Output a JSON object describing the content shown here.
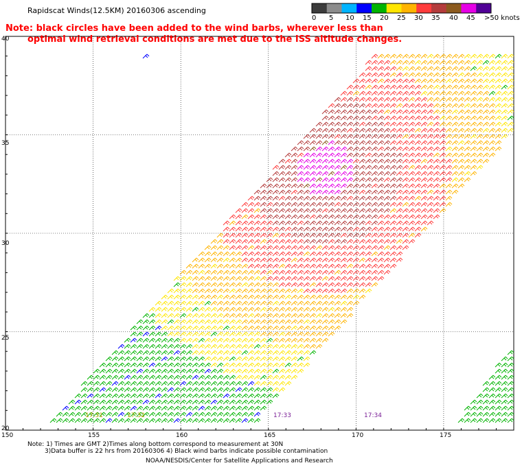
{
  "header": {
    "title": "Rapidscat Winds(12.5KM) 20160306 ascending",
    "note_line1": "Note: black circles have been added to the wind barbs, wherever less than",
    "note_line2": "optimal wind retrieval conditions are met due to the ISS altitude changes."
  },
  "color_scale": {
    "labels": [
      "0",
      "5",
      "10",
      "15",
      "20",
      "25",
      "30",
      "35",
      "40",
      "45",
      ">50 knots"
    ],
    "colors": [
      "#3c3c3c",
      "#8c8c8c",
      "#00b4ff",
      "#0000ff",
      "#00b400",
      "#ffe600",
      "#ffb400",
      "#ff3c3c",
      "#b43c3c",
      "#8c5a1e",
      "#e600e6",
      "#500096"
    ]
  },
  "map": {
    "lon_min": 150,
    "lon_max": 179,
    "lat_min": 20,
    "lat_max": 40,
    "lon_labels": [
      "150",
      "155",
      "160",
      "165",
      "170",
      "175"
    ],
    "lat_labels": [
      "40",
      "35",
      "30",
      "25",
      "20"
    ],
    "time_labels": [
      "17:31",
      "17:32",
      "17:33",
      "17:34"
    ]
  },
  "footer": {
    "line1": "Note: 1) Times are GMT 2)Times along bottom correspond to measurement at 30N",
    "line2": "3)Data buffer is 22 hrs from 20160306 4) Black wind barbs indicate possible contamination",
    "credit": "NOAA/NESDIS/Center for Satellite Applications and Research"
  }
}
